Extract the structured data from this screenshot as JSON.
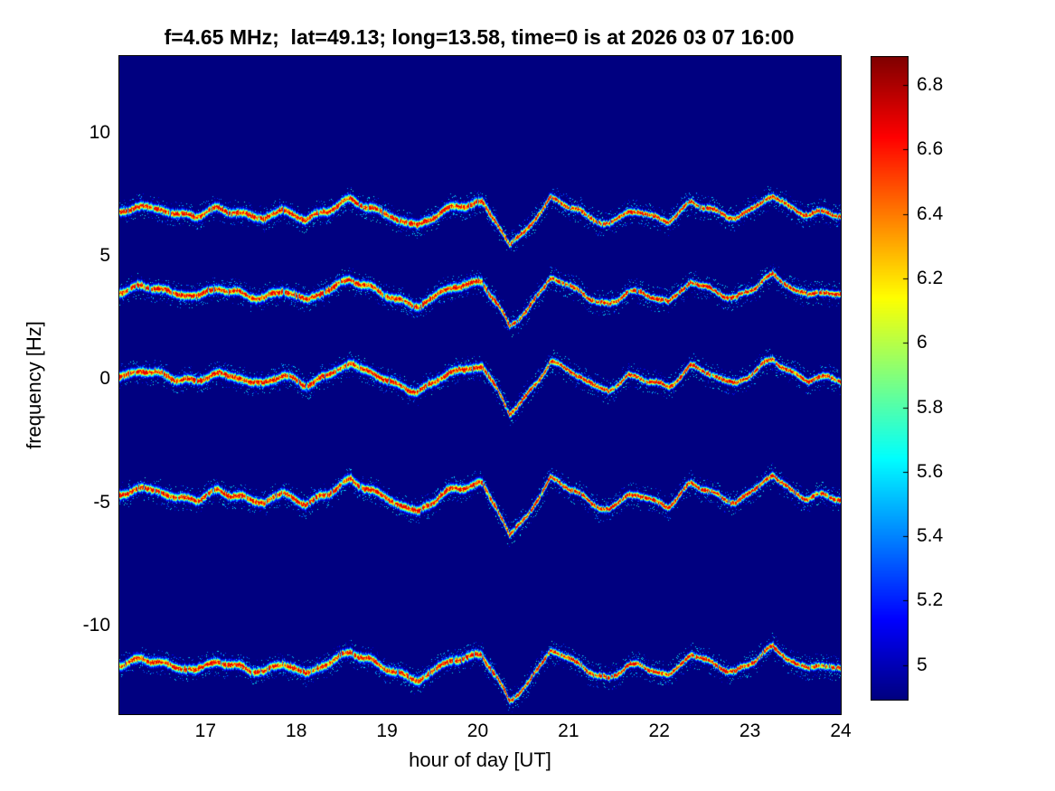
{
  "figure": {
    "colors": {
      "figure_bg": "#ffffff",
      "plot_bg": "#000086",
      "text": "#000000"
    }
  },
  "chart_data": {
    "type": "heatmap",
    "title": "f=4.65 MHz;  lat=49.13; long=13.58, time=0 is at 2026 03 07 16:00",
    "xlabel": "hour of day [UT]",
    "ylabel": "frequency [Hz]",
    "xlim": [
      16.05,
      24
    ],
    "ylim": [
      -13.6,
      13.1
    ],
    "x_tick_labels": [
      "17",
      "18",
      "19",
      "20",
      "21",
      "22",
      "23",
      "24"
    ],
    "x_tick_values": [
      17,
      18,
      19,
      20,
      21,
      22,
      23,
      24
    ],
    "y_tick_labels": [
      "10",
      "5",
      "0",
      "-5",
      "-10"
    ],
    "y_tick_values": [
      10,
      5,
      0,
      -5,
      -10
    ],
    "colormap": "jet",
    "grid": false,
    "legend": null,
    "background_value": 4.89,
    "colorbar": {
      "vmin": 4.89,
      "vmax": 6.89,
      "tick_labels": [
        "6.8",
        "6.6",
        "6.4",
        "6.2",
        "6",
        "5.8",
        "5.6",
        "5.4",
        "5.2",
        "5"
      ],
      "tick_values": [
        6.8,
        6.6,
        6.4,
        6.2,
        6.0,
        5.8,
        5.6,
        5.4,
        5.2,
        5.0
      ]
    },
    "traces": [
      {
        "center_hz": 6.7,
        "amp_scale": 0.9
      },
      {
        "center_hz": 3.45,
        "amp_scale": 0.95
      },
      {
        "center_hz": 0.0,
        "amp_scale": 1.0
      },
      {
        "center_hz": -4.8,
        "amp_scale": 1.1
      },
      {
        "center_hz": -11.7,
        "amp_scale": 1.0
      }
    ],
    "doppler_waveform": {
      "hours": [
        16.05,
        16.3,
        16.6,
        16.9,
        17.15,
        17.4,
        17.65,
        17.85,
        18.1,
        18.35,
        18.6,
        18.85,
        19.1,
        19.35,
        19.6,
        19.85,
        20.05,
        20.2,
        20.35,
        20.55,
        20.8,
        21.0,
        21.2,
        21.45,
        21.65,
        21.9,
        22.1,
        22.35,
        22.6,
        22.85,
        23.05,
        23.25,
        23.45,
        23.65,
        23.85,
        24.0
      ],
      "offsets_hz": [
        0.15,
        0.3,
        0.1,
        -0.1,
        0.2,
        0.05,
        -0.25,
        0.15,
        -0.2,
        0.1,
        0.65,
        0.25,
        -0.3,
        -0.5,
        0.1,
        0.35,
        0.55,
        -0.3,
        -1.45,
        -0.7,
        0.75,
        0.35,
        -0.15,
        -0.45,
        0.1,
        -0.1,
        -0.3,
        0.5,
        0.1,
        -0.15,
        0.25,
        0.8,
        0.3,
        -0.05,
        0.05,
        -0.1
      ]
    }
  }
}
